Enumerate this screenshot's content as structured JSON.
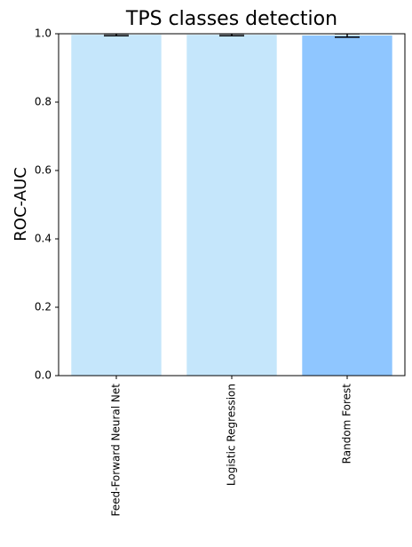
{
  "chart_data": {
    "type": "bar",
    "title": "TPS classes detection",
    "y_label": "ROC-AUC",
    "categories": [
      "Feed-Forward Neural Net",
      "Logistic Regression",
      "Random Forest"
    ],
    "values": [
      0.997,
      0.997,
      0.995
    ],
    "errors": [
      0.003,
      0.003,
      0.005
    ],
    "colors": [
      "#c5e6fb",
      "#c5e6fb",
      "#8fc6ff"
    ],
    "ylim": [
      0,
      1
    ],
    "yticks": [
      {
        "value": 0,
        "label": "0.0"
      },
      {
        "value": 0.2,
        "label": "0.2"
      },
      {
        "value": 0.4,
        "label": "0.4"
      },
      {
        "value": 0.6,
        "label": "0.6"
      },
      {
        "value": 0.8,
        "label": "0.8"
      },
      {
        "value": 1,
        "label": "1.0"
      }
    ],
    "grid": false
  }
}
